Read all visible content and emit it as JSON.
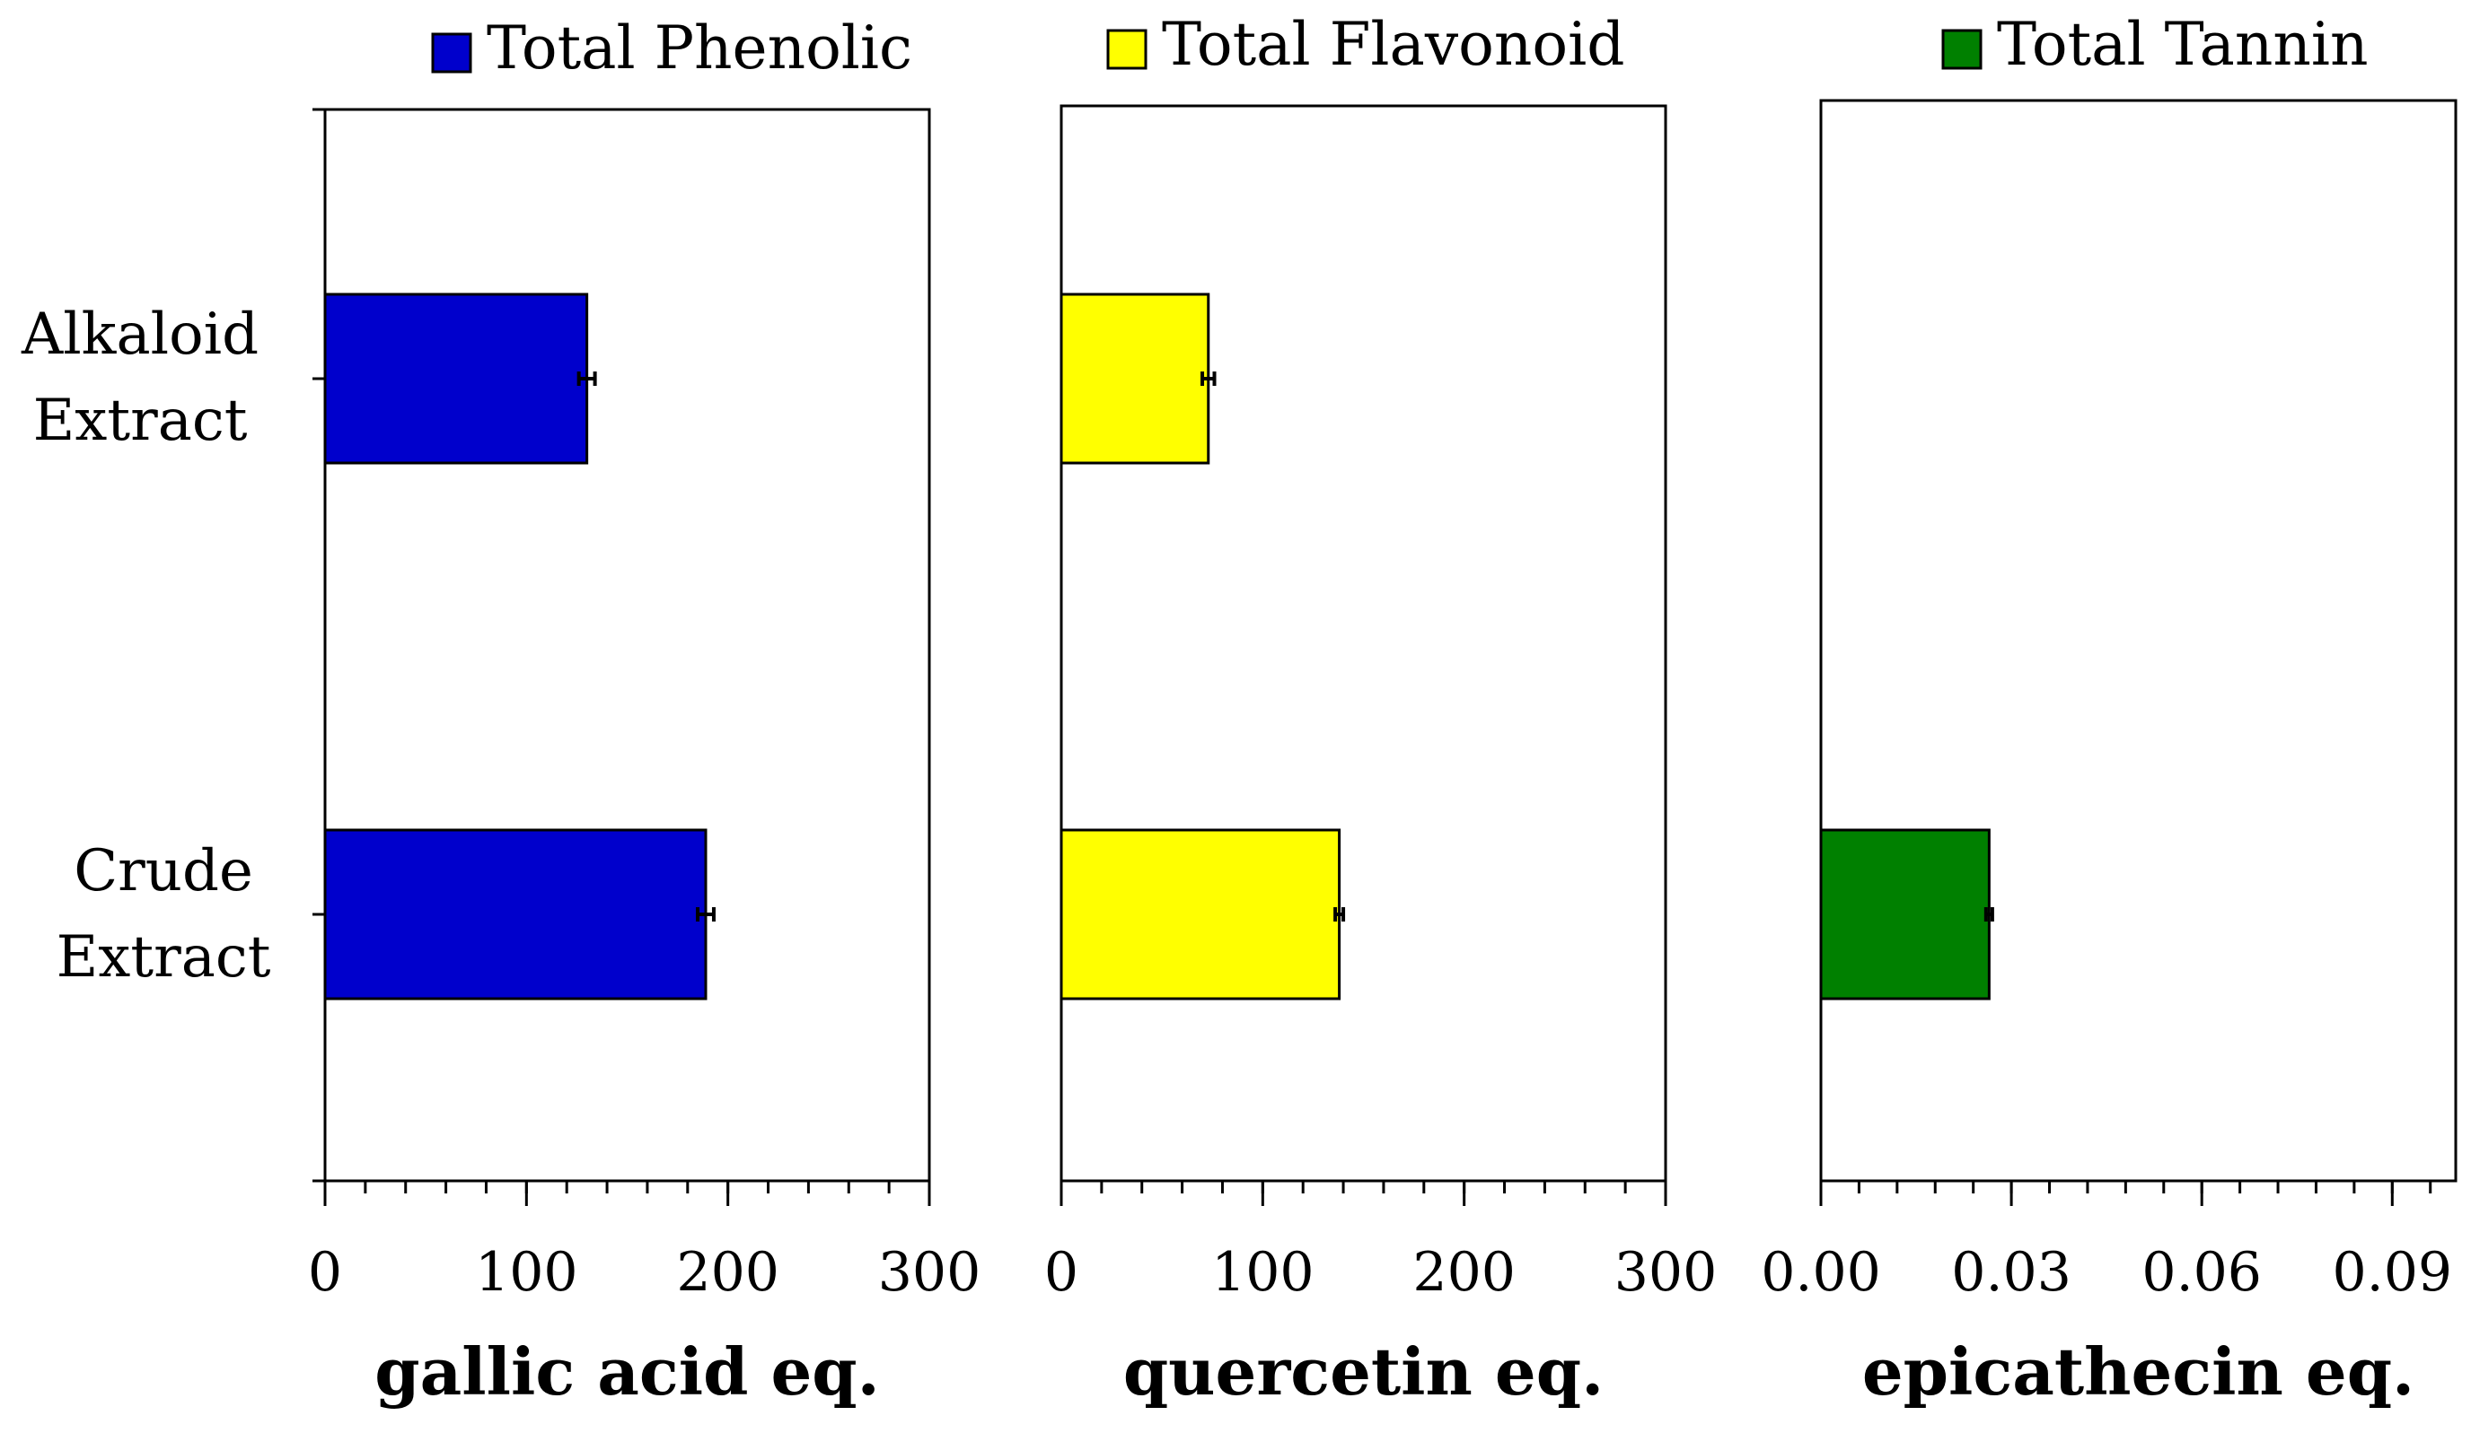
{
  "chart_data": [
    {
      "type": "bar",
      "orientation": "horizontal",
      "legend": "Total Phenolic",
      "categories": [
        "Alkaloid Extract",
        "Crude Extract"
      ],
      "category_lines": [
        [
          "Alkaloid",
          "Extract"
        ],
        [
          "Crude",
          "Extract"
        ]
      ],
      "values": [
        130,
        189
      ],
      "errors": [
        4,
        4
      ],
      "color": "#0000CC",
      "xlabel": "gallic acid eq.",
      "xlim": [
        0,
        300
      ],
      "ticks": [
        "0",
        "100",
        "200",
        "300"
      ],
      "tick_values": [
        0,
        100,
        200,
        300
      ],
      "minor_step": 20
    },
    {
      "type": "bar",
      "orientation": "horizontal",
      "legend": "Total Flavonoid",
      "categories": [
        "Alkaloid Extract",
        "Crude Extract"
      ],
      "values": [
        73,
        138
      ],
      "errors": [
        3,
        2
      ],
      "color": "#FFFF00",
      "xlabel": "quercetin eq.",
      "xlim": [
        0,
        300
      ],
      "ticks": [
        "0",
        "100",
        "200",
        "300"
      ],
      "tick_values": [
        0,
        100,
        200,
        300
      ],
      "minor_step": 20
    },
    {
      "type": "bar",
      "orientation": "horizontal",
      "legend": "Total Tannin",
      "categories": [
        "Alkaloid Extract",
        "Crude Extract"
      ],
      "values": [
        null,
        0.0265
      ],
      "errors": [
        0,
        0.0005
      ],
      "color": "#008000",
      "xlabel": "epicathecin eq.",
      "xlim": [
        0,
        0.1
      ],
      "ticks": [
        "0.00",
        "0.03",
        "0.06",
        "0.09"
      ],
      "tick_values": [
        0,
        0.03,
        0.06,
        0.09
      ],
      "minor_step": 0.006
    }
  ]
}
